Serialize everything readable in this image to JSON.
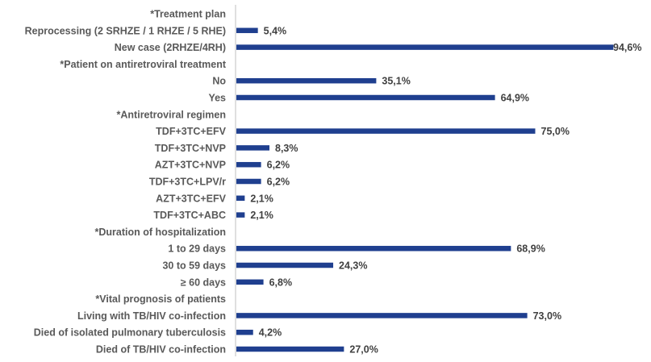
{
  "chart_data": {
    "type": "bar",
    "orientation": "horizontal",
    "title": "",
    "xlabel": "",
    "ylabel": "",
    "xlim": [
      0,
      100
    ],
    "grid": false,
    "legend": "none",
    "bar_color": "#1f3f8f",
    "categories": [
      "*Treatment plan",
      "Reprocessing (2 SRHZE / 1 RHZE / 5 RHE)",
      "New case (2RHZE/4RH)",
      "*Patient on antiretroviral treatment",
      "No",
      "Yes",
      "*Antiretroviral regimen",
      "TDF+3TC+EFV",
      "TDF+3TC+NVP",
      "AZT+3TC+NVP",
      "TDF+3TC+LPV/r",
      "AZT+3TC+EFV",
      "TDF+3TC+ABC",
      "*Duration of hospitalization",
      "1 to 29 days",
      "30 to 59 days",
      "≥ 60 days",
      "*Vital prognosis of patients",
      "Living with TB/HIV co-infection",
      "Died of isolated pulmonary tuberculosis",
      "Died of TB/HIV co-infection"
    ],
    "values": [
      null,
      5.4,
      94.6,
      null,
      35.1,
      64.9,
      null,
      75.0,
      8.3,
      6.2,
      6.2,
      2.1,
      2.1,
      null,
      68.9,
      24.3,
      6.8,
      null,
      73.0,
      4.2,
      27.0
    ],
    "value_labels": [
      "",
      "5,4%",
      "94,6%",
      "",
      "35,1%",
      "64,9%",
      "",
      "75,0%",
      "8,3%",
      "6,2%",
      "6,2%",
      "2,1%",
      "2,1%",
      "",
      "68,9%",
      "24,3%",
      "6,8%",
      "",
      "73,0%",
      "4,2%",
      "27,0%"
    ]
  }
}
